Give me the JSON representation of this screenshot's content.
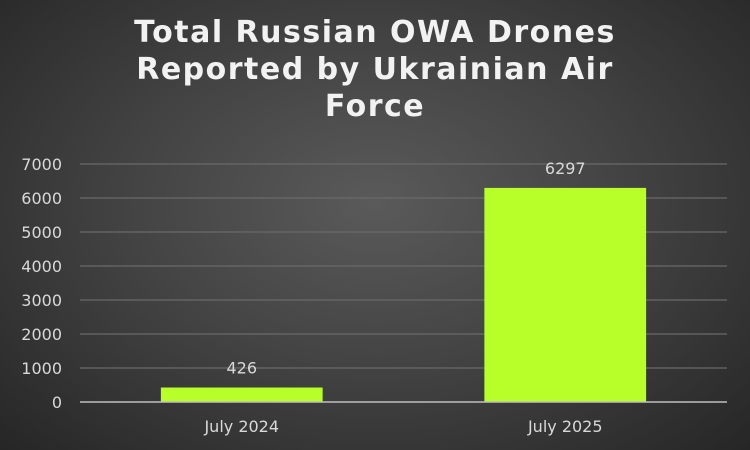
{
  "chart_data": {
    "type": "bar",
    "title_lines": [
      "Total Russian OWA Drones",
      "Reported by Ukrainian Air",
      "Force"
    ],
    "categories": [
      "July 2024",
      "July 2025"
    ],
    "values": [
      426,
      6297
    ],
    "data_labels": [
      "426",
      "6297"
    ],
    "ylim": [
      0,
      7000
    ],
    "yticks": [
      "0",
      "1000",
      "2000",
      "3000",
      "4000",
      "5000",
      "6000",
      "7000"
    ],
    "xlabel": "",
    "ylabel": "",
    "grid": true,
    "legend": "none",
    "colors": {
      "bar": "#b8ff2a",
      "text": "#d9d9d9",
      "grid": "#6a6a6a",
      "axis": "#bfbfbf"
    }
  }
}
